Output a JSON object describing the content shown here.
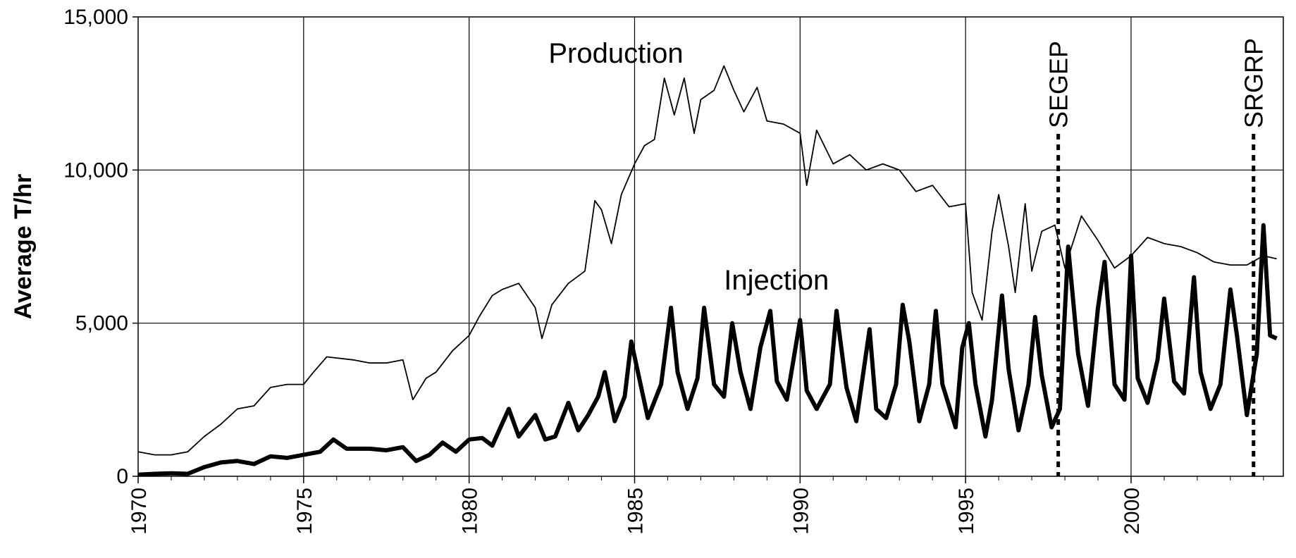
{
  "chart_data": {
    "type": "line",
    "title": "",
    "xlabel": "",
    "ylabel": "Average T/hr",
    "xlim": [
      1970,
      2004.6
    ],
    "ylim": [
      0,
      15000
    ],
    "grid": true,
    "legend": "none",
    "x_tick_labels": [
      "1970",
      "1975",
      "1980",
      "1985",
      "1990",
      "1995",
      "2000"
    ],
    "y_tick_labels": [
      "0",
      "5,000",
      "10,000",
      "15,000"
    ],
    "series": [
      {
        "name": "Production",
        "color": "#000000",
        "points": [
          [
            1970.0,
            800
          ],
          [
            1970.5,
            700
          ],
          [
            1971.0,
            700
          ],
          [
            1971.5,
            800
          ],
          [
            1972.0,
            1300
          ],
          [
            1972.5,
            1700
          ],
          [
            1973.0,
            2200
          ],
          [
            1973.5,
            2300
          ],
          [
            1974.0,
            2900
          ],
          [
            1974.5,
            3000
          ],
          [
            1975.0,
            3000
          ],
          [
            1975.3,
            3400
          ],
          [
            1975.7,
            3900
          ],
          [
            1976.5,
            3800
          ],
          [
            1977.0,
            3700
          ],
          [
            1977.5,
            3700
          ],
          [
            1978.0,
            3800
          ],
          [
            1978.3,
            2500
          ],
          [
            1978.7,
            3200
          ],
          [
            1979.0,
            3400
          ],
          [
            1979.5,
            4100
          ],
          [
            1980.0,
            4600
          ],
          [
            1980.3,
            5200
          ],
          [
            1980.7,
            5900
          ],
          [
            1981.0,
            6100
          ],
          [
            1981.5,
            6300
          ],
          [
            1982.0,
            5500
          ],
          [
            1982.2,
            4500
          ],
          [
            1982.5,
            5600
          ],
          [
            1983.0,
            6300
          ],
          [
            1983.5,
            6700
          ],
          [
            1983.8,
            9000
          ],
          [
            1984.0,
            8700
          ],
          [
            1984.3,
            7600
          ],
          [
            1984.6,
            9200
          ],
          [
            1985.0,
            10200
          ],
          [
            1985.3,
            10800
          ],
          [
            1985.6,
            11000
          ],
          [
            1985.9,
            13000
          ],
          [
            1986.2,
            11800
          ],
          [
            1986.5,
            13000
          ],
          [
            1986.8,
            11200
          ],
          [
            1987.0,
            12300
          ],
          [
            1987.4,
            12600
          ],
          [
            1987.7,
            13400
          ],
          [
            1988.0,
            12600
          ],
          [
            1988.3,
            11900
          ],
          [
            1988.7,
            12700
          ],
          [
            1989.0,
            11600
          ],
          [
            1989.5,
            11500
          ],
          [
            1990.0,
            11200
          ],
          [
            1990.2,
            9500
          ],
          [
            1990.5,
            11300
          ],
          [
            1991.0,
            10200
          ],
          [
            1991.5,
            10500
          ],
          [
            1992.0,
            10000
          ],
          [
            1992.5,
            10200
          ],
          [
            1993.0,
            10000
          ],
          [
            1993.5,
            9300
          ],
          [
            1994.0,
            9500
          ],
          [
            1994.5,
            8800
          ],
          [
            1995.0,
            8900
          ],
          [
            1995.2,
            6000
          ],
          [
            1995.5,
            5100
          ],
          [
            1995.8,
            8000
          ],
          [
            1996.0,
            9200
          ],
          [
            1996.3,
            7500
          ],
          [
            1996.5,
            6000
          ],
          [
            1996.8,
            8900
          ],
          [
            1997.0,
            6700
          ],
          [
            1997.3,
            8000
          ],
          [
            1997.7,
            8200
          ],
          [
            1998.0,
            6800
          ],
          [
            1998.5,
            8500
          ],
          [
            1999.0,
            7700
          ],
          [
            1999.5,
            6800
          ],
          [
            2000.0,
            7200
          ],
          [
            2000.5,
            7800
          ],
          [
            2001.0,
            7600
          ],
          [
            2001.5,
            7500
          ],
          [
            2002.0,
            7300
          ],
          [
            2002.5,
            7000
          ],
          [
            2003.0,
            6900
          ],
          [
            2003.5,
            6900
          ],
          [
            2004.0,
            7200
          ],
          [
            2004.4,
            7100
          ]
        ]
      },
      {
        "name": "Injection",
        "color": "#000000",
        "points": [
          [
            1970.0,
            50
          ],
          [
            1970.5,
            80
          ],
          [
            1971.0,
            100
          ],
          [
            1971.5,
            80
          ],
          [
            1972.0,
            300
          ],
          [
            1972.5,
            450
          ],
          [
            1973.0,
            500
          ],
          [
            1973.5,
            400
          ],
          [
            1974.0,
            650
          ],
          [
            1974.5,
            600
          ],
          [
            1975.0,
            700
          ],
          [
            1975.5,
            800
          ],
          [
            1975.9,
            1200
          ],
          [
            1976.3,
            900
          ],
          [
            1977.0,
            900
          ],
          [
            1977.5,
            850
          ],
          [
            1978.0,
            950
          ],
          [
            1978.4,
            500
          ],
          [
            1978.8,
            700
          ],
          [
            1979.2,
            1100
          ],
          [
            1979.6,
            800
          ],
          [
            1980.0,
            1200
          ],
          [
            1980.4,
            1250
          ],
          [
            1980.7,
            1000
          ],
          [
            1981.2,
            2200
          ],
          [
            1981.5,
            1300
          ],
          [
            1982.0,
            2000
          ],
          [
            1982.3,
            1200
          ],
          [
            1982.6,
            1300
          ],
          [
            1983.0,
            2400
          ],
          [
            1983.3,
            1500
          ],
          [
            1983.6,
            2000
          ],
          [
            1983.9,
            2600
          ],
          [
            1984.1,
            3400
          ],
          [
            1984.4,
            1800
          ],
          [
            1984.7,
            2600
          ],
          [
            1984.9,
            4400
          ],
          [
            1985.1,
            3400
          ],
          [
            1985.4,
            1900
          ],
          [
            1985.8,
            3000
          ],
          [
            1986.1,
            5500
          ],
          [
            1986.3,
            3400
          ],
          [
            1986.6,
            2200
          ],
          [
            1986.9,
            3200
          ],
          [
            1987.1,
            5500
          ],
          [
            1987.4,
            3000
          ],
          [
            1987.7,
            2600
          ],
          [
            1987.95,
            5000
          ],
          [
            1988.2,
            3400
          ],
          [
            1988.5,
            2200
          ],
          [
            1988.8,
            4200
          ],
          [
            1989.1,
            5400
          ],
          [
            1989.3,
            3100
          ],
          [
            1989.6,
            2500
          ],
          [
            1990.0,
            5100
          ],
          [
            1990.2,
            2800
          ],
          [
            1990.5,
            2200
          ],
          [
            1990.9,
            3000
          ],
          [
            1991.1,
            5400
          ],
          [
            1991.4,
            2900
          ],
          [
            1991.7,
            1800
          ],
          [
            1992.1,
            4800
          ],
          [
            1992.3,
            2200
          ],
          [
            1992.6,
            1900
          ],
          [
            1992.9,
            3000
          ],
          [
            1993.1,
            5600
          ],
          [
            1993.3,
            4400
          ],
          [
            1993.6,
            1800
          ],
          [
            1993.9,
            3000
          ],
          [
            1994.1,
            5400
          ],
          [
            1994.3,
            3000
          ],
          [
            1994.7,
            1600
          ],
          [
            1994.9,
            4200
          ],
          [
            1995.1,
            5000
          ],
          [
            1995.3,
            3000
          ],
          [
            1995.6,
            1300
          ],
          [
            1995.8,
            2500
          ],
          [
            1996.1,
            5900
          ],
          [
            1996.3,
            3500
          ],
          [
            1996.6,
            1500
          ],
          [
            1996.9,
            3000
          ],
          [
            1997.1,
            5200
          ],
          [
            1997.3,
            3300
          ],
          [
            1997.6,
            1600
          ],
          [
            1997.85,
            2200
          ],
          [
            1998.1,
            7500
          ],
          [
            1998.4,
            4000
          ],
          [
            1998.7,
            2300
          ],
          [
            1999.0,
            5500
          ],
          [
            1999.2,
            7000
          ],
          [
            1999.5,
            3000
          ],
          [
            1999.8,
            2500
          ],
          [
            2000.0,
            7200
          ],
          [
            2000.2,
            3200
          ],
          [
            2000.5,
            2400
          ],
          [
            2000.8,
            3800
          ],
          [
            2001.0,
            5800
          ],
          [
            2001.3,
            3100
          ],
          [
            2001.6,
            2700
          ],
          [
            2001.9,
            6500
          ],
          [
            2002.1,
            3400
          ],
          [
            2002.4,
            2200
          ],
          [
            2002.7,
            3000
          ],
          [
            2003.0,
            6100
          ],
          [
            2003.2,
            4600
          ],
          [
            2003.5,
            2000
          ],
          [
            2003.8,
            4000
          ],
          [
            2004.0,
            8200
          ],
          [
            2004.2,
            4600
          ],
          [
            2004.4,
            4500
          ]
        ]
      }
    ],
    "series_labels": [
      {
        "text": "Production",
        "x": 1982.4,
        "y": 13500
      },
      {
        "text": "Injection",
        "x": 1987.7,
        "y": 6100
      }
    ],
    "events": [
      {
        "label": "SEGEP",
        "x": 1997.8
      },
      {
        "label": "SRGRP",
        "x": 2003.7
      }
    ]
  }
}
